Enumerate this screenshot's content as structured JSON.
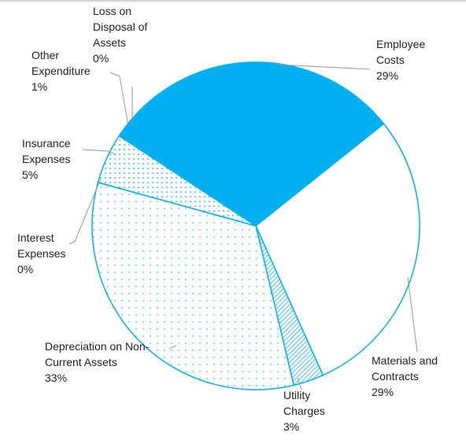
{
  "chart_data": {
    "type": "pie",
    "categories": [
      "Employee Costs",
      "Materials and Contracts",
      "Utility Charges",
      "Depreciation on Non-Current Assets",
      "Interest Expenses",
      "Insurance Expenses",
      "Other Expenditure",
      "Loss on Disposal of Assets"
    ],
    "values": [
      29,
      29,
      3,
      33,
      0,
      5,
      1,
      0
    ],
    "value_labels": [
      "29%",
      "29%",
      "3%",
      "33%",
      "0%",
      "5%",
      "1%",
      "0%"
    ],
    "color": "#00b0f0",
    "fills": [
      "solid",
      "none",
      "hatch",
      "dots",
      "none",
      "dots-dense",
      "solid",
      "solid"
    ]
  }
}
